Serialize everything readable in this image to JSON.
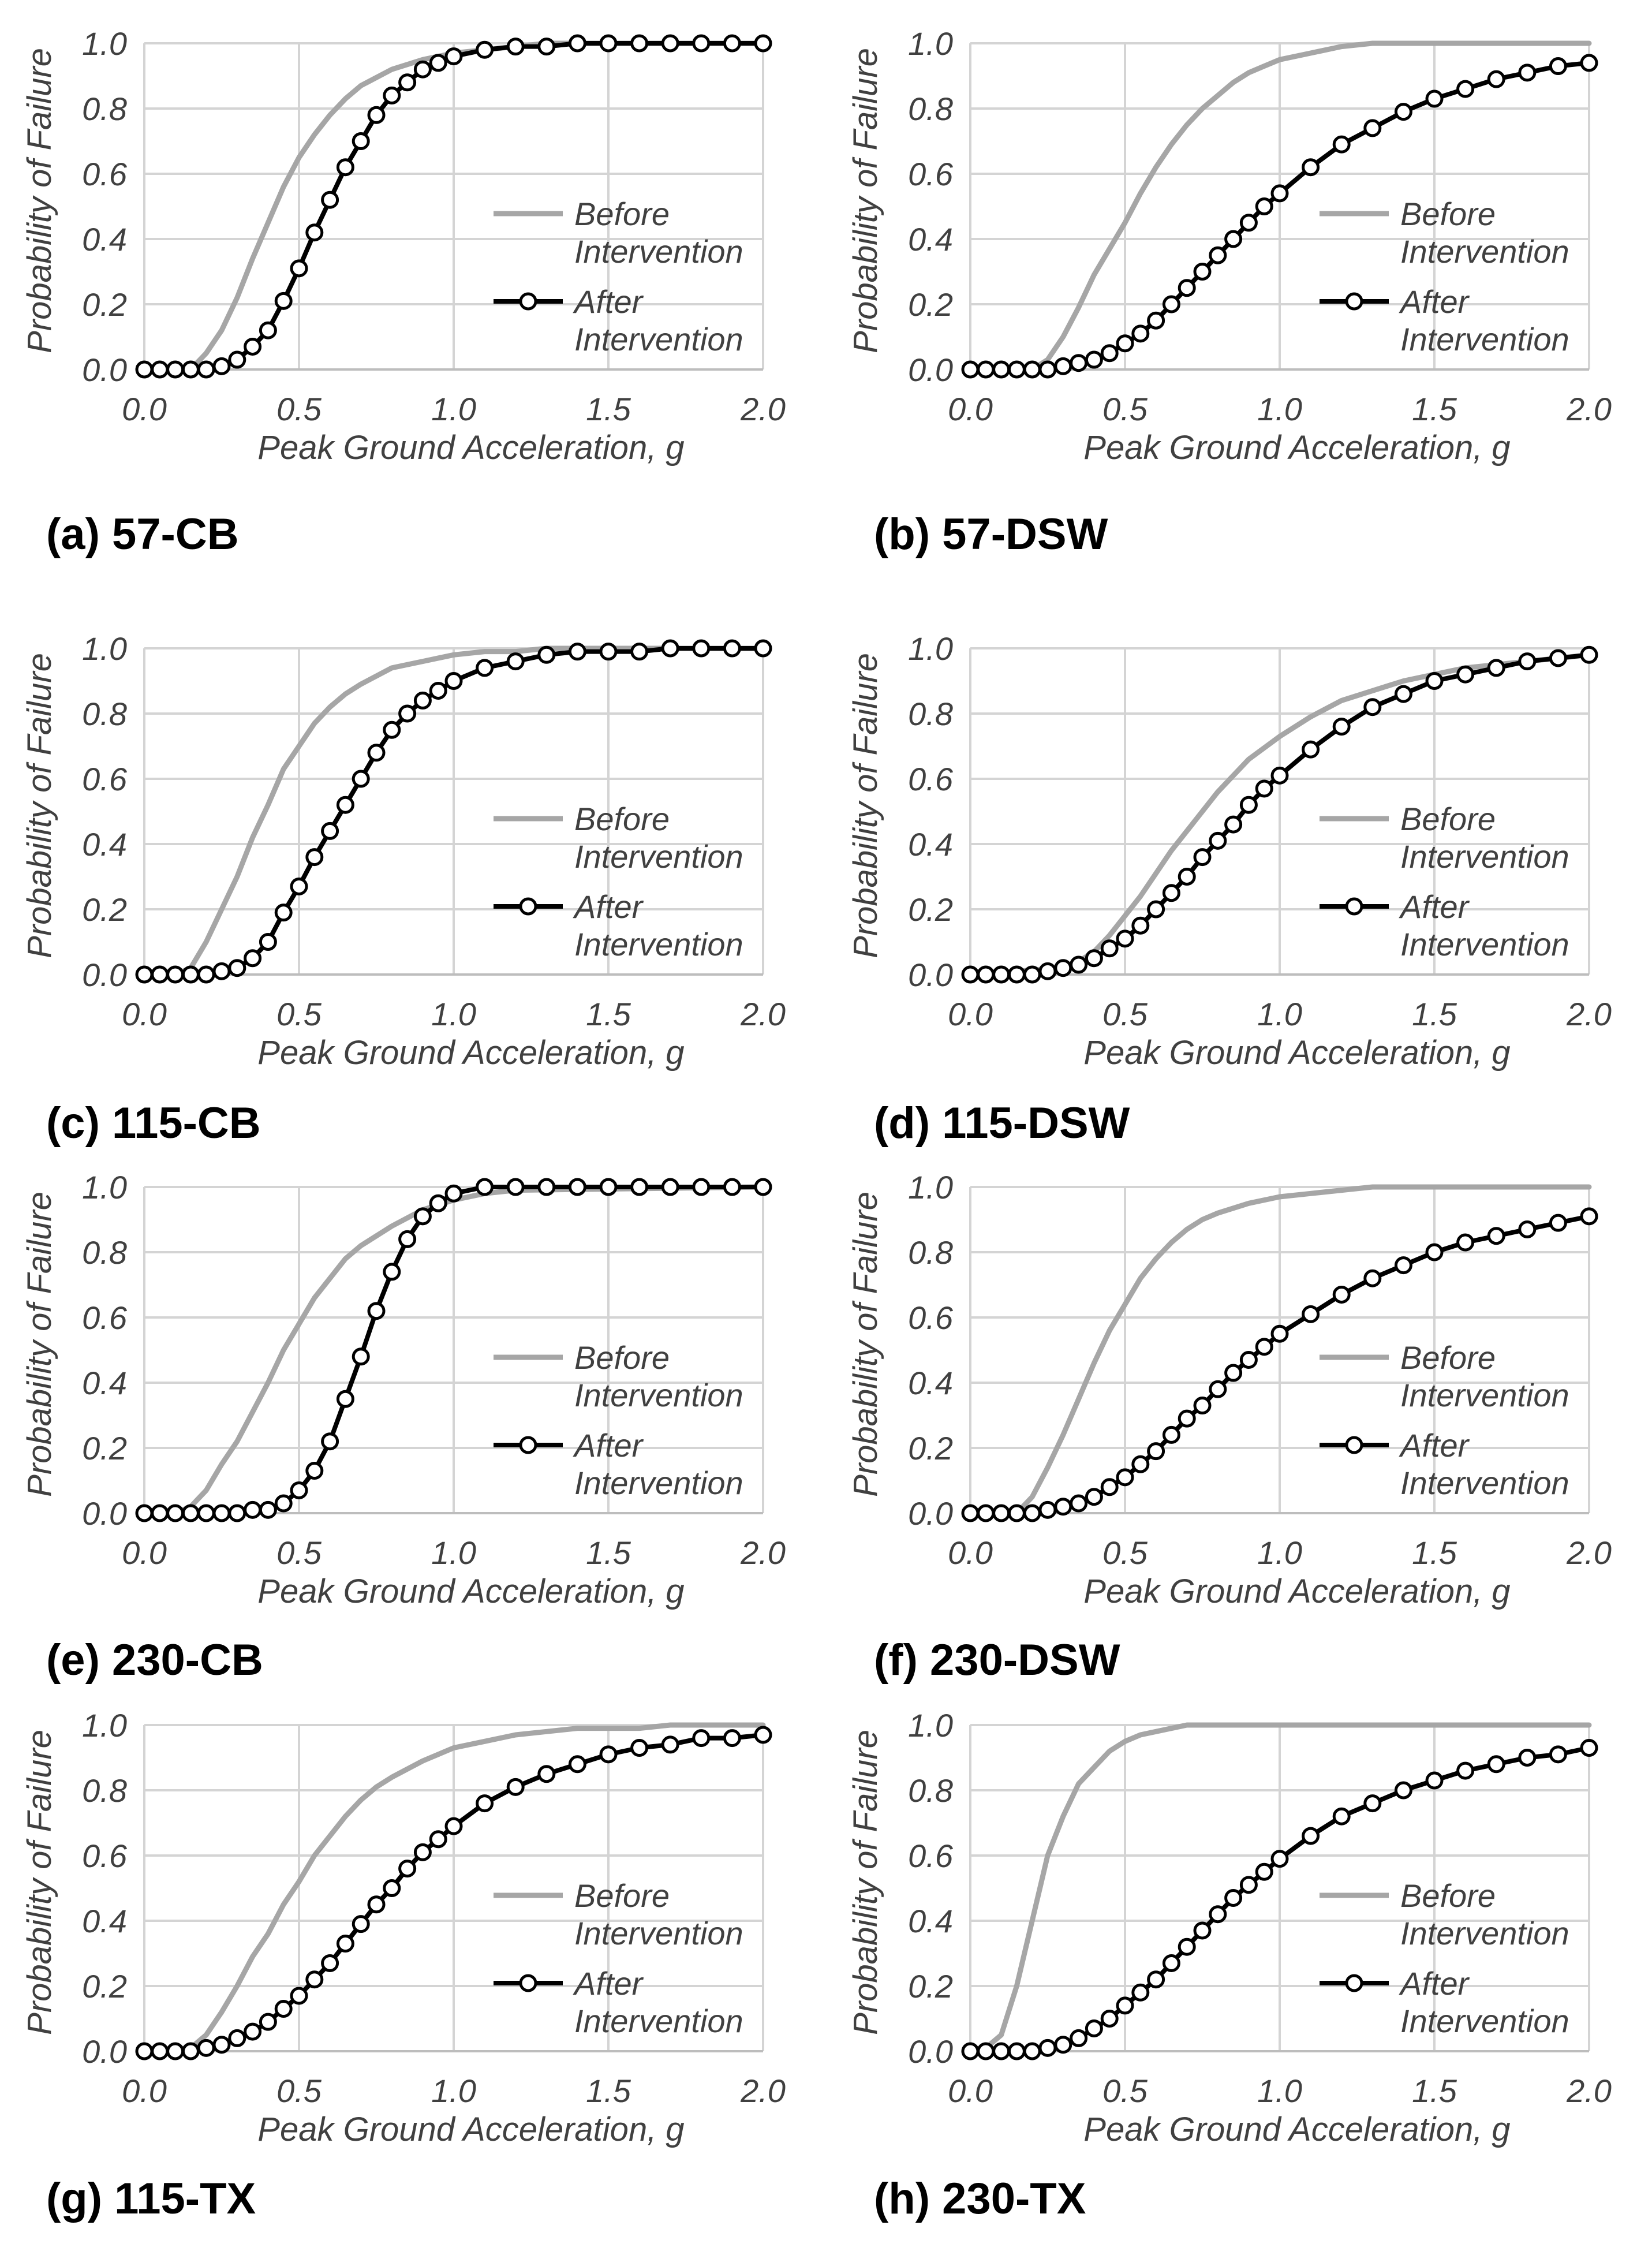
{
  "chart_data": [
    {
      "type": "line",
      "caption": "(a) 57-CB",
      "xlabel": "Peak Ground Acceleration, g",
      "ylabel": "Probability of Failure",
      "xlim": [
        0,
        2
      ],
      "ylim": [
        0,
        1
      ],
      "xticks": [
        "0.0",
        "0.5",
        "1.0",
        "1.5",
        "2.0"
      ],
      "yticks": [
        "0.0",
        "0.2",
        "0.4",
        "0.6",
        "0.8",
        "1.0"
      ],
      "legend": [
        "Before",
        "Intervention",
        "After",
        "Intervention"
      ],
      "before": {
        "x": [
          0,
          0.1,
          0.15,
          0.2,
          0.25,
          0.3,
          0.35,
          0.4,
          0.45,
          0.5,
          0.55,
          0.6,
          0.65,
          0.7,
          0.8,
          0.9,
          1.0,
          1.1,
          1.2,
          1.3,
          2.0
        ],
        "y": [
          0,
          0,
          0,
          0.05,
          0.12,
          0.22,
          0.34,
          0.45,
          0.56,
          0.65,
          0.72,
          0.78,
          0.83,
          0.87,
          0.92,
          0.95,
          0.97,
          0.98,
          0.99,
          1.0,
          1.0
        ]
      },
      "after": {
        "x": [
          0,
          0.05,
          0.1,
          0.15,
          0.2,
          0.25,
          0.3,
          0.35,
          0.4,
          0.45,
          0.5,
          0.55,
          0.6,
          0.65,
          0.7,
          0.75,
          0.8,
          0.85,
          0.9,
          0.95,
          1.0,
          1.1,
          1.2,
          1.3,
          1.4,
          1.5,
          1.6,
          1.7,
          1.8,
          1.9,
          2.0
        ],
        "y": [
          0,
          0,
          0,
          0,
          0,
          0.01,
          0.03,
          0.07,
          0.12,
          0.21,
          0.31,
          0.42,
          0.52,
          0.62,
          0.7,
          0.78,
          0.84,
          0.88,
          0.92,
          0.94,
          0.96,
          0.98,
          0.99,
          0.99,
          1.0,
          1.0,
          1.0,
          1.0,
          1.0,
          1.0,
          1.0
        ]
      }
    },
    {
      "type": "line",
      "caption": "(b) 57-DSW",
      "xlabel": "Peak Ground Acceleration, g",
      "ylabel": "Probability of Failure",
      "xlim": [
        0,
        2
      ],
      "ylim": [
        0,
        1
      ],
      "xticks": [
        "0.0",
        "0.5",
        "1.0",
        "1.5",
        "2.0"
      ],
      "yticks": [
        "0.0",
        "0.2",
        "0.4",
        "0.6",
        "0.8",
        "1.0"
      ],
      "legend": [
        "Before",
        "Intervention",
        "After",
        "Intervention"
      ],
      "before": {
        "x": [
          0,
          0.2,
          0.25,
          0.3,
          0.35,
          0.4,
          0.45,
          0.5,
          0.55,
          0.6,
          0.65,
          0.7,
          0.75,
          0.8,
          0.85,
          0.9,
          0.95,
          1.0,
          1.1,
          1.2,
          1.3,
          2.0
        ],
        "y": [
          0,
          0,
          0.03,
          0.1,
          0.19,
          0.29,
          0.37,
          0.45,
          0.54,
          0.62,
          0.69,
          0.75,
          0.8,
          0.84,
          0.88,
          0.91,
          0.93,
          0.95,
          0.97,
          0.99,
          1.0,
          1.0
        ]
      },
      "after": {
        "x": [
          0,
          0.05,
          0.1,
          0.15,
          0.2,
          0.25,
          0.3,
          0.35,
          0.4,
          0.45,
          0.5,
          0.55,
          0.6,
          0.65,
          0.7,
          0.75,
          0.8,
          0.85,
          0.9,
          0.95,
          1.0,
          1.1,
          1.2,
          1.3,
          1.4,
          1.5,
          1.6,
          1.7,
          1.8,
          1.9,
          2.0
        ],
        "y": [
          0,
          0,
          0,
          0,
          0,
          0,
          0.01,
          0.02,
          0.03,
          0.05,
          0.08,
          0.11,
          0.15,
          0.2,
          0.25,
          0.3,
          0.35,
          0.4,
          0.45,
          0.5,
          0.54,
          0.62,
          0.69,
          0.74,
          0.79,
          0.83,
          0.86,
          0.89,
          0.91,
          0.93,
          0.94
        ]
      }
    },
    {
      "type": "line",
      "caption": "(c) 115-CB",
      "xlabel": "Peak Ground Acceleration, g",
      "ylabel": "Probability of Failure",
      "xlim": [
        0,
        2
      ],
      "ylim": [
        0,
        1
      ],
      "xticks": [
        "0.0",
        "0.5",
        "1.0",
        "1.5",
        "2.0"
      ],
      "yticks": [
        "0.0",
        "0.2",
        "0.4",
        "0.6",
        "0.8",
        "1.0"
      ],
      "legend": [
        "Before",
        "Intervention",
        "After",
        "Intervention"
      ],
      "before": {
        "x": [
          0,
          0.1,
          0.15,
          0.2,
          0.25,
          0.3,
          0.35,
          0.4,
          0.45,
          0.5,
          0.55,
          0.6,
          0.65,
          0.7,
          0.8,
          0.9,
          1.0,
          1.1,
          1.2,
          1.3,
          2.0
        ],
        "y": [
          0,
          0,
          0.02,
          0.1,
          0.2,
          0.3,
          0.42,
          0.52,
          0.63,
          0.7,
          0.77,
          0.82,
          0.86,
          0.89,
          0.94,
          0.96,
          0.98,
          0.99,
          0.99,
          1.0,
          1.0
        ]
      },
      "after": {
        "x": [
          0,
          0.05,
          0.1,
          0.15,
          0.2,
          0.25,
          0.3,
          0.35,
          0.4,
          0.45,
          0.5,
          0.55,
          0.6,
          0.65,
          0.7,
          0.75,
          0.8,
          0.85,
          0.9,
          0.95,
          1.0,
          1.1,
          1.2,
          1.3,
          1.4,
          1.5,
          1.6,
          1.7,
          1.8,
          1.9,
          2.0
        ],
        "y": [
          0,
          0,
          0,
          0,
          0,
          0.01,
          0.02,
          0.05,
          0.1,
          0.19,
          0.27,
          0.36,
          0.44,
          0.52,
          0.6,
          0.68,
          0.75,
          0.8,
          0.84,
          0.87,
          0.9,
          0.94,
          0.96,
          0.98,
          0.99,
          0.99,
          0.99,
          1.0,
          1.0,
          1.0,
          1.0
        ]
      }
    },
    {
      "type": "line",
      "caption": "(d) 115-DSW",
      "xlabel": "Peak Ground Acceleration, g",
      "ylabel": "Probability of Failure",
      "xlim": [
        0,
        2
      ],
      "ylim": [
        0,
        1
      ],
      "xticks": [
        "0.0",
        "0.5",
        "1.0",
        "1.5",
        "2.0"
      ],
      "yticks": [
        "0.0",
        "0.2",
        "0.4",
        "0.6",
        "0.8",
        "1.0"
      ],
      "legend": [
        "Before",
        "Intervention",
        "After",
        "Intervention"
      ],
      "before": {
        "x": [
          0,
          0.3,
          0.35,
          0.4,
          0.45,
          0.5,
          0.55,
          0.6,
          0.65,
          0.7,
          0.75,
          0.8,
          0.85,
          0.9,
          1.0,
          1.1,
          1.2,
          1.3,
          1.4,
          1.5,
          1.6,
          1.7,
          1.8,
          1.9,
          2.0
        ],
        "y": [
          0,
          0.02,
          0.04,
          0.07,
          0.12,
          0.18,
          0.24,
          0.31,
          0.38,
          0.44,
          0.5,
          0.56,
          0.61,
          0.66,
          0.73,
          0.79,
          0.84,
          0.87,
          0.9,
          0.92,
          0.94,
          0.95,
          0.96,
          0.97,
          0.98
        ]
      },
      "after": {
        "x": [
          0,
          0.05,
          0.1,
          0.15,
          0.2,
          0.25,
          0.3,
          0.35,
          0.4,
          0.45,
          0.5,
          0.55,
          0.6,
          0.65,
          0.7,
          0.75,
          0.8,
          0.85,
          0.9,
          0.95,
          1.0,
          1.1,
          1.2,
          1.3,
          1.4,
          1.5,
          1.6,
          1.7,
          1.8,
          1.9,
          2.0
        ],
        "y": [
          0,
          0,
          0,
          0,
          0,
          0.01,
          0.02,
          0.03,
          0.05,
          0.08,
          0.11,
          0.15,
          0.2,
          0.25,
          0.3,
          0.36,
          0.41,
          0.46,
          0.52,
          0.57,
          0.61,
          0.69,
          0.76,
          0.82,
          0.86,
          0.9,
          0.92,
          0.94,
          0.96,
          0.97,
          0.98
        ]
      }
    },
    {
      "type": "line",
      "caption": "(e) 230-CB",
      "xlabel": "Peak Ground Acceleration, g",
      "ylabel": "Probability of Failure",
      "xlim": [
        0,
        2
      ],
      "ylim": [
        0,
        1
      ],
      "xticks": [
        "0.0",
        "0.5",
        "1.0",
        "1.5",
        "2.0"
      ],
      "yticks": [
        "0.0",
        "0.2",
        "0.4",
        "0.6",
        "0.8",
        "1.0"
      ],
      "legend": [
        "Before",
        "Intervention",
        "After",
        "Intervention"
      ],
      "before": {
        "x": [
          0,
          0.1,
          0.15,
          0.2,
          0.25,
          0.3,
          0.35,
          0.4,
          0.45,
          0.5,
          0.55,
          0.6,
          0.65,
          0.7,
          0.8,
          0.9,
          1.0,
          1.1,
          1.2,
          2.0
        ],
        "y": [
          0,
          0,
          0.02,
          0.07,
          0.15,
          0.22,
          0.31,
          0.4,
          0.5,
          0.58,
          0.66,
          0.72,
          0.78,
          0.82,
          0.88,
          0.93,
          0.96,
          0.98,
          0.99,
          1.0
        ]
      },
      "after": {
        "x": [
          0,
          0.05,
          0.1,
          0.15,
          0.2,
          0.25,
          0.3,
          0.35,
          0.4,
          0.45,
          0.5,
          0.55,
          0.6,
          0.65,
          0.7,
          0.75,
          0.8,
          0.85,
          0.9,
          0.95,
          1.0,
          1.1,
          1.2,
          1.3,
          1.4,
          1.5,
          1.6,
          1.7,
          1.8,
          1.9,
          2.0
        ],
        "y": [
          0,
          0,
          0,
          0,
          0,
          0,
          0,
          0.01,
          0.01,
          0.03,
          0.07,
          0.13,
          0.22,
          0.35,
          0.48,
          0.62,
          0.74,
          0.84,
          0.91,
          0.95,
          0.98,
          1.0,
          1.0,
          1.0,
          1.0,
          1.0,
          1.0,
          1.0,
          1.0,
          1.0,
          1.0
        ]
      }
    },
    {
      "type": "line",
      "caption": "(f) 230-DSW",
      "xlabel": "Peak Ground Acceleration, g",
      "ylabel": "Probability of Failure",
      "xlim": [
        0,
        2
      ],
      "ylim": [
        0,
        1
      ],
      "xticks": [
        "0.0",
        "0.5",
        "1.0",
        "1.5",
        "2.0"
      ],
      "yticks": [
        "0.0",
        "0.2",
        "0.4",
        "0.6",
        "0.8",
        "1.0"
      ],
      "legend": [
        "Before",
        "Intervention",
        "After",
        "Intervention"
      ],
      "before": {
        "x": [
          0,
          0.15,
          0.2,
          0.25,
          0.3,
          0.35,
          0.4,
          0.45,
          0.5,
          0.55,
          0.6,
          0.65,
          0.7,
          0.75,
          0.8,
          0.9,
          1.0,
          1.1,
          1.2,
          1.3,
          2.0
        ],
        "y": [
          0,
          0,
          0.05,
          0.14,
          0.24,
          0.35,
          0.46,
          0.56,
          0.64,
          0.72,
          0.78,
          0.83,
          0.87,
          0.9,
          0.92,
          0.95,
          0.97,
          0.98,
          0.99,
          1.0,
          1.0
        ]
      },
      "after": {
        "x": [
          0,
          0.05,
          0.1,
          0.15,
          0.2,
          0.25,
          0.3,
          0.35,
          0.4,
          0.45,
          0.5,
          0.55,
          0.6,
          0.65,
          0.7,
          0.75,
          0.8,
          0.85,
          0.9,
          0.95,
          1.0,
          1.1,
          1.2,
          1.3,
          1.4,
          1.5,
          1.6,
          1.7,
          1.8,
          1.9,
          2.0
        ],
        "y": [
          0,
          0,
          0,
          0,
          0,
          0.01,
          0.02,
          0.03,
          0.05,
          0.08,
          0.11,
          0.15,
          0.19,
          0.24,
          0.29,
          0.33,
          0.38,
          0.43,
          0.47,
          0.51,
          0.55,
          0.61,
          0.67,
          0.72,
          0.76,
          0.8,
          0.83,
          0.85,
          0.87,
          0.89,
          0.91
        ]
      }
    },
    {
      "type": "line",
      "caption": "(g) 115-TX",
      "xlabel": "Peak Ground Acceleration, g",
      "ylabel": "Probability of Failure",
      "xlim": [
        0,
        2
      ],
      "ylim": [
        0,
        1
      ],
      "xticks": [
        "0.0",
        "0.5",
        "1.0",
        "1.5",
        "2.0"
      ],
      "yticks": [
        "0.0",
        "0.2",
        "0.4",
        "0.6",
        "0.8",
        "1.0"
      ],
      "legend": [
        "Before",
        "Intervention",
        "After",
        "Intervention"
      ],
      "before": {
        "x": [
          0,
          0.15,
          0.2,
          0.25,
          0.3,
          0.35,
          0.4,
          0.45,
          0.5,
          0.55,
          0.6,
          0.65,
          0.7,
          0.75,
          0.8,
          0.9,
          1.0,
          1.1,
          1.2,
          1.3,
          1.4,
          1.5,
          1.6,
          1.7,
          2.0
        ],
        "y": [
          0,
          0.01,
          0.05,
          0.12,
          0.2,
          0.29,
          0.36,
          0.45,
          0.52,
          0.6,
          0.66,
          0.72,
          0.77,
          0.81,
          0.84,
          0.89,
          0.93,
          0.95,
          0.97,
          0.98,
          0.99,
          0.99,
          0.99,
          1.0,
          1.0
        ]
      },
      "after": {
        "x": [
          0,
          0.05,
          0.1,
          0.15,
          0.2,
          0.25,
          0.3,
          0.35,
          0.4,
          0.45,
          0.5,
          0.55,
          0.6,
          0.65,
          0.7,
          0.75,
          0.8,
          0.85,
          0.9,
          0.95,
          1.0,
          1.1,
          1.2,
          1.3,
          1.4,
          1.5,
          1.6,
          1.7,
          1.8,
          1.9,
          2.0
        ],
        "y": [
          0,
          0,
          0,
          0,
          0.01,
          0.02,
          0.04,
          0.06,
          0.09,
          0.13,
          0.17,
          0.22,
          0.27,
          0.33,
          0.39,
          0.45,
          0.5,
          0.56,
          0.61,
          0.65,
          0.69,
          0.76,
          0.81,
          0.85,
          0.88,
          0.91,
          0.93,
          0.94,
          0.96,
          0.96,
          0.97
        ]
      }
    },
    {
      "type": "line",
      "caption": "(h) 230-TX",
      "xlabel": "Peak Ground Acceleration, g",
      "ylabel": "Probability of Failure",
      "xlim": [
        0,
        2
      ],
      "ylim": [
        0,
        1
      ],
      "xticks": [
        "0.0",
        "0.5",
        "1.0",
        "1.5",
        "2.0"
      ],
      "yticks": [
        "0.0",
        "0.2",
        "0.4",
        "0.6",
        "0.8",
        "1.0"
      ],
      "legend": [
        "Before",
        "Intervention",
        "After",
        "Intervention"
      ],
      "before": {
        "x": [
          0,
          0.05,
          0.1,
          0.15,
          0.2,
          0.25,
          0.3,
          0.35,
          0.4,
          0.45,
          0.5,
          0.55,
          0.6,
          0.7,
          2.0
        ],
        "y": [
          0,
          0.01,
          0.05,
          0.2,
          0.4,
          0.6,
          0.72,
          0.82,
          0.87,
          0.92,
          0.95,
          0.97,
          0.98,
          1.0,
          1.0
        ]
      },
      "after": {
        "x": [
          0,
          0.05,
          0.1,
          0.15,
          0.2,
          0.25,
          0.3,
          0.35,
          0.4,
          0.45,
          0.5,
          0.55,
          0.6,
          0.65,
          0.7,
          0.75,
          0.8,
          0.85,
          0.9,
          0.95,
          1.0,
          1.1,
          1.2,
          1.3,
          1.4,
          1.5,
          1.6,
          1.7,
          1.8,
          1.9,
          2.0
        ],
        "y": [
          0,
          0,
          0,
          0,
          0,
          0.01,
          0.02,
          0.04,
          0.07,
          0.1,
          0.14,
          0.18,
          0.22,
          0.27,
          0.32,
          0.37,
          0.42,
          0.47,
          0.51,
          0.55,
          0.59,
          0.66,
          0.72,
          0.76,
          0.8,
          0.83,
          0.86,
          0.88,
          0.9,
          0.91,
          0.93
        ]
      }
    }
  ]
}
